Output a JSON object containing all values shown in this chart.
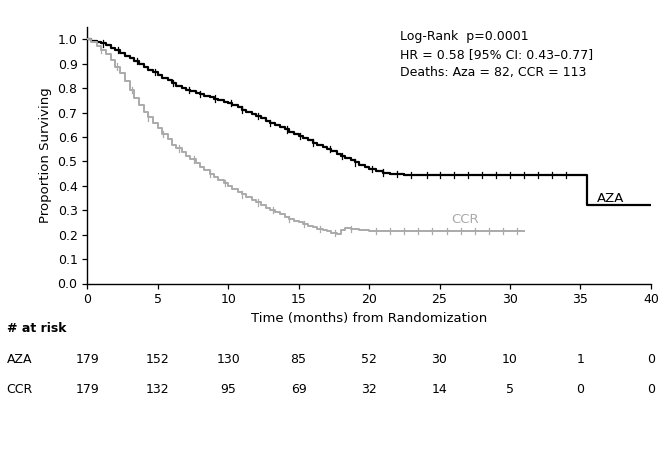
{
  "annotation": "Log-Rank  p=0.0001\nHR = 0.58 [95% CI: 0.43–0.77]\nDeaths: Aza = 82, CCR = 113",
  "xlabel": "Time (months) from Randomization",
  "ylabel": "Proportion Surviving",
  "xlim": [
    0,
    40
  ],
  "ylim": [
    0.0,
    1.05
  ],
  "yticks": [
    0.0,
    0.1,
    0.2,
    0.3,
    0.4,
    0.5,
    0.6,
    0.7,
    0.8,
    0.9,
    1.0
  ],
  "xticks": [
    0,
    5,
    10,
    15,
    20,
    25,
    30,
    35,
    40
  ],
  "aza_color": "#000000",
  "ccr_color": "#aaaaaa",
  "aza_label": "AZA",
  "ccr_label": "CCR",
  "at_risk_header": "# at risk",
  "at_risk_times": [
    0,
    5,
    10,
    15,
    20,
    25,
    30,
    35,
    40
  ],
  "at_risk_aza": [
    179,
    152,
    130,
    85,
    52,
    30,
    10,
    1,
    0
  ],
  "at_risk_ccr": [
    179,
    132,
    95,
    69,
    32,
    14,
    5,
    0,
    0
  ],
  "aza_times": [
    0,
    0.3,
    0.7,
    1.0,
    1.3,
    1.7,
    2.0,
    2.3,
    2.7,
    3.0,
    3.3,
    3.7,
    4.0,
    4.3,
    4.7,
    5.0,
    5.3,
    5.7,
    6.0,
    6.3,
    6.7,
    7.0,
    7.3,
    7.7,
    8.0,
    8.3,
    8.7,
    9.0,
    9.3,
    9.7,
    10.0,
    10.3,
    10.7,
    11.0,
    11.3,
    11.7,
    12.0,
    12.3,
    12.7,
    13.0,
    13.3,
    13.7,
    14.0,
    14.3,
    14.7,
    15.0,
    15.3,
    15.7,
    16.0,
    16.3,
    16.7,
    17.0,
    17.3,
    17.7,
    18.0,
    18.3,
    18.7,
    19.0,
    19.3,
    19.7,
    20.0,
    20.5,
    21.0,
    21.5,
    22.0,
    22.5,
    23.0,
    23.5,
    24.0,
    24.5,
    25.0,
    25.5,
    26.0,
    26.5,
    27.0,
    27.5,
    28.0,
    28.5,
    29.0,
    29.5,
    30.0,
    30.5,
    31.0,
    31.5,
    32.0,
    32.5,
    33.0,
    33.5,
    34.0,
    34.5,
    35.0,
    35.5,
    36.0,
    37.0,
    38.0,
    39.0,
    40.0
  ],
  "aza_surv": [
    1.0,
    0.994,
    0.988,
    0.983,
    0.977,
    0.966,
    0.955,
    0.944,
    0.933,
    0.922,
    0.91,
    0.899,
    0.888,
    0.876,
    0.865,
    0.854,
    0.843,
    0.832,
    0.821,
    0.81,
    0.799,
    0.793,
    0.787,
    0.781,
    0.775,
    0.769,
    0.763,
    0.757,
    0.751,
    0.745,
    0.739,
    0.73,
    0.721,
    0.712,
    0.703,
    0.694,
    0.685,
    0.676,
    0.667,
    0.658,
    0.649,
    0.64,
    0.631,
    0.622,
    0.613,
    0.604,
    0.595,
    0.586,
    0.577,
    0.568,
    0.559,
    0.55,
    0.541,
    0.532,
    0.523,
    0.514,
    0.505,
    0.496,
    0.487,
    0.478,
    0.47,
    0.462,
    0.454,
    0.45,
    0.448,
    0.446,
    0.444,
    0.444,
    0.444,
    0.444,
    0.444,
    0.444,
    0.444,
    0.444,
    0.444,
    0.444,
    0.444,
    0.444,
    0.444,
    0.444,
    0.444,
    0.444,
    0.444,
    0.444,
    0.444,
    0.444,
    0.444,
    0.444,
    0.444,
    0.444,
    0.444,
    0.32,
    0.32,
    0.32,
    0.32,
    0.32,
    0.32
  ],
  "ccr_times": [
    0,
    0.3,
    0.7,
    1.0,
    1.3,
    1.7,
    2.0,
    2.3,
    2.7,
    3.0,
    3.3,
    3.7,
    4.0,
    4.3,
    4.7,
    5.0,
    5.3,
    5.7,
    6.0,
    6.3,
    6.7,
    7.0,
    7.3,
    7.7,
    8.0,
    8.3,
    8.7,
    9.0,
    9.3,
    9.7,
    10.0,
    10.3,
    10.7,
    11.0,
    11.3,
    11.7,
    12.0,
    12.3,
    12.7,
    13.0,
    13.3,
    13.7,
    14.0,
    14.3,
    14.7,
    15.0,
    15.3,
    15.7,
    16.0,
    16.3,
    16.7,
    17.0,
    17.3,
    17.7,
    18.0,
    18.3,
    18.7,
    19.0,
    19.3,
    19.7,
    20.0,
    20.5,
    21.0,
    21.5,
    22.0,
    22.5,
    23.0,
    23.5,
    24.0,
    24.5,
    25.0,
    25.5,
    26.0,
    26.5,
    27.0,
    28.0,
    29.0,
    30.0,
    31.0
  ],
  "ccr_surv": [
    1.0,
    0.989,
    0.972,
    0.956,
    0.939,
    0.916,
    0.888,
    0.86,
    0.827,
    0.793,
    0.76,
    0.731,
    0.703,
    0.68,
    0.657,
    0.635,
    0.612,
    0.59,
    0.568,
    0.553,
    0.538,
    0.523,
    0.508,
    0.493,
    0.478,
    0.463,
    0.45,
    0.437,
    0.424,
    0.411,
    0.398,
    0.387,
    0.376,
    0.365,
    0.354,
    0.343,
    0.332,
    0.321,
    0.31,
    0.301,
    0.292,
    0.283,
    0.274,
    0.265,
    0.257,
    0.25,
    0.243,
    0.236,
    0.23,
    0.224,
    0.218,
    0.213,
    0.208,
    0.203,
    0.22,
    0.228,
    0.224,
    0.222,
    0.22,
    0.218,
    0.216,
    0.215,
    0.214,
    0.214,
    0.214,
    0.214,
    0.214,
    0.214,
    0.214,
    0.214,
    0.214,
    0.214,
    0.214,
    0.214,
    0.214,
    0.214,
    0.214,
    0.214,
    0.214
  ],
  "aza_censor_times": [
    1.1,
    2.2,
    3.5,
    4.8,
    6.1,
    7.2,
    8.0,
    9.1,
    10.2,
    11.0,
    12.1,
    13.0,
    14.2,
    15.1,
    16.0,
    17.2,
    18.1,
    19.0,
    20.2,
    21.0,
    22.0,
    23.0,
    24.1,
    25.0,
    26.0,
    27.0,
    28.0,
    29.0,
    30.0,
    31.0,
    32.0,
    33.0,
    34.0
  ],
  "ccr_censor_times": [
    1.0,
    2.1,
    3.2,
    4.3,
    5.4,
    6.5,
    7.6,
    8.7,
    9.8,
    11.0,
    12.1,
    13.2,
    14.3,
    15.4,
    16.5,
    17.6,
    18.7,
    20.5,
    21.5,
    22.5,
    23.5,
    24.5,
    25.5,
    26.5,
    27.5,
    28.5,
    29.5,
    30.5
  ]
}
